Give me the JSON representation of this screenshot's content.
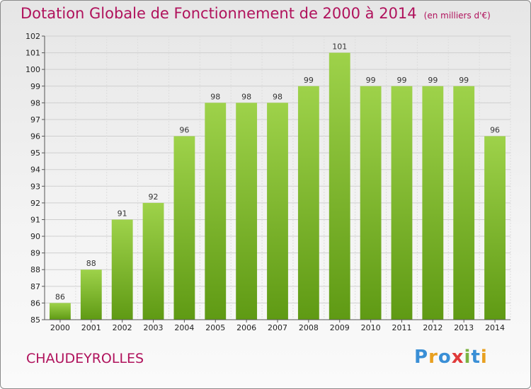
{
  "title": "Dotation Globale de Fonctionnement de 2000 à 2014",
  "units": "(en milliers d'€)",
  "commune": "CHAUDEYROLLES",
  "logo": {
    "letters": [
      "P",
      "r",
      "o",
      "x",
      "i",
      "t",
      "i"
    ],
    "colors": [
      "#3a8fd6",
      "#e8a020",
      "#3a8fd6",
      "#e03a3a",
      "#7cb342",
      "#3a8fd6",
      "#e8a020"
    ]
  },
  "colors": {
    "bar_light": "#9ed24a",
    "bar_dark": "#5f9a14",
    "title": "#b0125c"
  },
  "chart_data": {
    "type": "bar",
    "categories": [
      "2000",
      "2001",
      "2002",
      "2003",
      "2004",
      "2005",
      "2006",
      "2007",
      "2008",
      "2009",
      "2010",
      "2011",
      "2012",
      "2013",
      "2014"
    ],
    "values": [
      86,
      88,
      91,
      92,
      96,
      98,
      98,
      98,
      99,
      101,
      99,
      99,
      99,
      99,
      96
    ],
    "ylim": [
      85,
      102
    ],
    "yticks": [
      85,
      86,
      87,
      88,
      89,
      90,
      91,
      92,
      93,
      94,
      95,
      96,
      97,
      98,
      99,
      100,
      101,
      102
    ],
    "grid": true
  }
}
